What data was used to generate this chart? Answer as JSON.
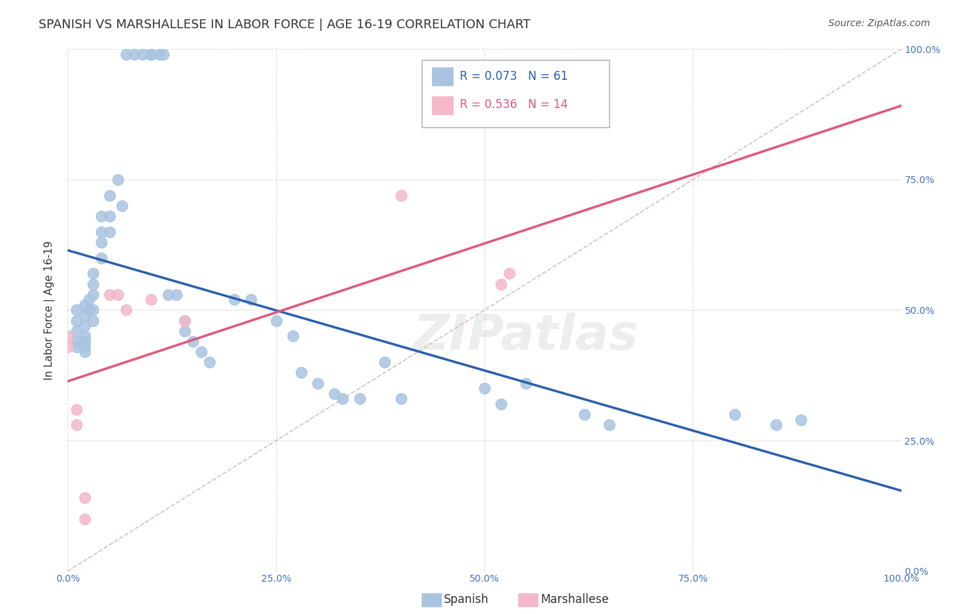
{
  "title": "SPANISH VS MARSHALLESE IN LABOR FORCE | AGE 16-19 CORRELATION CHART",
  "source": "Source: ZipAtlas.com",
  "ylabel": "In Labor Force | Age 16-19",
  "spanish_R": 0.073,
  "spanish_N": 61,
  "marshallese_R": 0.536,
  "marshallese_N": 14,
  "spanish_color": "#a8c4e0",
  "marshallese_color": "#f4b8c8",
  "spanish_line_color": "#2b5fad",
  "marshallese_line_color": "#e05878",
  "diagonal_color": "#c8a0a8",
  "watermark": "ZIPatlas",
  "spanish_points": [
    [
      0.01,
      0.43
    ],
    [
      0.01,
      0.46
    ],
    [
      0.01,
      0.48
    ],
    [
      0.01,
      0.5
    ],
    [
      0.01,
      0.44
    ],
    [
      0.02,
      0.42
    ],
    [
      0.02,
      0.47
    ],
    [
      0.02,
      0.49
    ],
    [
      0.02,
      0.51
    ],
    [
      0.02,
      0.43
    ],
    [
      0.02,
      0.45
    ],
    [
      0.02,
      0.44
    ],
    [
      0.025,
      0.52
    ],
    [
      0.025,
      0.5
    ],
    [
      0.03,
      0.55
    ],
    [
      0.03,
      0.57
    ],
    [
      0.03,
      0.53
    ],
    [
      0.03,
      0.5
    ],
    [
      0.03,
      0.48
    ],
    [
      0.04,
      0.6
    ],
    [
      0.04,
      0.65
    ],
    [
      0.04,
      0.68
    ],
    [
      0.04,
      0.63
    ],
    [
      0.05,
      0.72
    ],
    [
      0.05,
      0.68
    ],
    [
      0.05,
      0.65
    ],
    [
      0.06,
      0.75
    ],
    [
      0.065,
      0.7
    ],
    [
      0.07,
      0.99
    ],
    [
      0.08,
      0.99
    ],
    [
      0.09,
      0.99
    ],
    [
      0.1,
      0.99
    ],
    [
      0.1,
      0.99
    ],
    [
      0.11,
      0.99
    ],
    [
      0.115,
      0.99
    ],
    [
      0.12,
      0.53
    ],
    [
      0.13,
      0.53
    ],
    [
      0.14,
      0.48
    ],
    [
      0.14,
      0.46
    ],
    [
      0.15,
      0.44
    ],
    [
      0.16,
      0.42
    ],
    [
      0.17,
      0.4
    ],
    [
      0.2,
      0.52
    ],
    [
      0.22,
      0.52
    ],
    [
      0.25,
      0.48
    ],
    [
      0.27,
      0.45
    ],
    [
      0.28,
      0.38
    ],
    [
      0.3,
      0.36
    ],
    [
      0.32,
      0.34
    ],
    [
      0.33,
      0.33
    ],
    [
      0.35,
      0.33
    ],
    [
      0.38,
      0.4
    ],
    [
      0.4,
      0.33
    ],
    [
      0.5,
      0.35
    ],
    [
      0.52,
      0.32
    ],
    [
      0.55,
      0.36
    ],
    [
      0.62,
      0.3
    ],
    [
      0.65,
      0.28
    ],
    [
      0.8,
      0.3
    ],
    [
      0.85,
      0.28
    ],
    [
      0.88,
      0.29
    ]
  ],
  "marshallese_points": [
    [
      0.0,
      0.43
    ],
    [
      0.0,
      0.45
    ],
    [
      0.01,
      0.31
    ],
    [
      0.01,
      0.28
    ],
    [
      0.02,
      0.14
    ],
    [
      0.02,
      0.1
    ],
    [
      0.05,
      0.53
    ],
    [
      0.06,
      0.53
    ],
    [
      0.07,
      0.5
    ],
    [
      0.1,
      0.52
    ],
    [
      0.14,
      0.48
    ],
    [
      0.4,
      0.72
    ],
    [
      0.52,
      0.55
    ],
    [
      0.53,
      0.57
    ]
  ],
  "grid_color": "#cccccc",
  "background_color": "#ffffff"
}
